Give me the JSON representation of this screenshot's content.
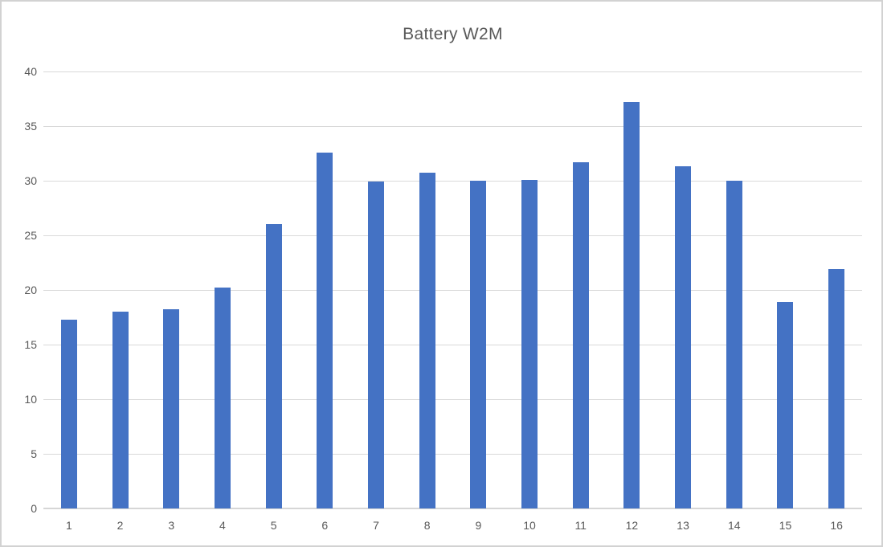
{
  "chart_data": {
    "type": "bar",
    "title": "Battery W2M",
    "categories": [
      "1",
      "2",
      "3",
      "4",
      "5",
      "6",
      "7",
      "8",
      "9",
      "10",
      "11",
      "12",
      "13",
      "14",
      "15",
      "16"
    ],
    "values": [
      17.3,
      18.0,
      18.2,
      20.2,
      26.0,
      32.6,
      29.9,
      30.7,
      30.0,
      30.1,
      31.7,
      37.2,
      31.3,
      30.0,
      18.9,
      21.9
    ],
    "xlabel": "",
    "ylabel": "",
    "ylim": [
      0,
      40
    ],
    "ytick_step": 5,
    "ytick_labels": [
      "0",
      "5",
      "10",
      "15",
      "20",
      "25",
      "30",
      "35",
      "40"
    ],
    "grid": true,
    "legend": "none",
    "colors": {
      "bar": "#4472C4",
      "gridline": "#D9D9D9",
      "axis_line": "#D6D6D6",
      "text": "#595959",
      "background": "#FFFFFF",
      "frame_border": "#D2D2D2"
    }
  }
}
